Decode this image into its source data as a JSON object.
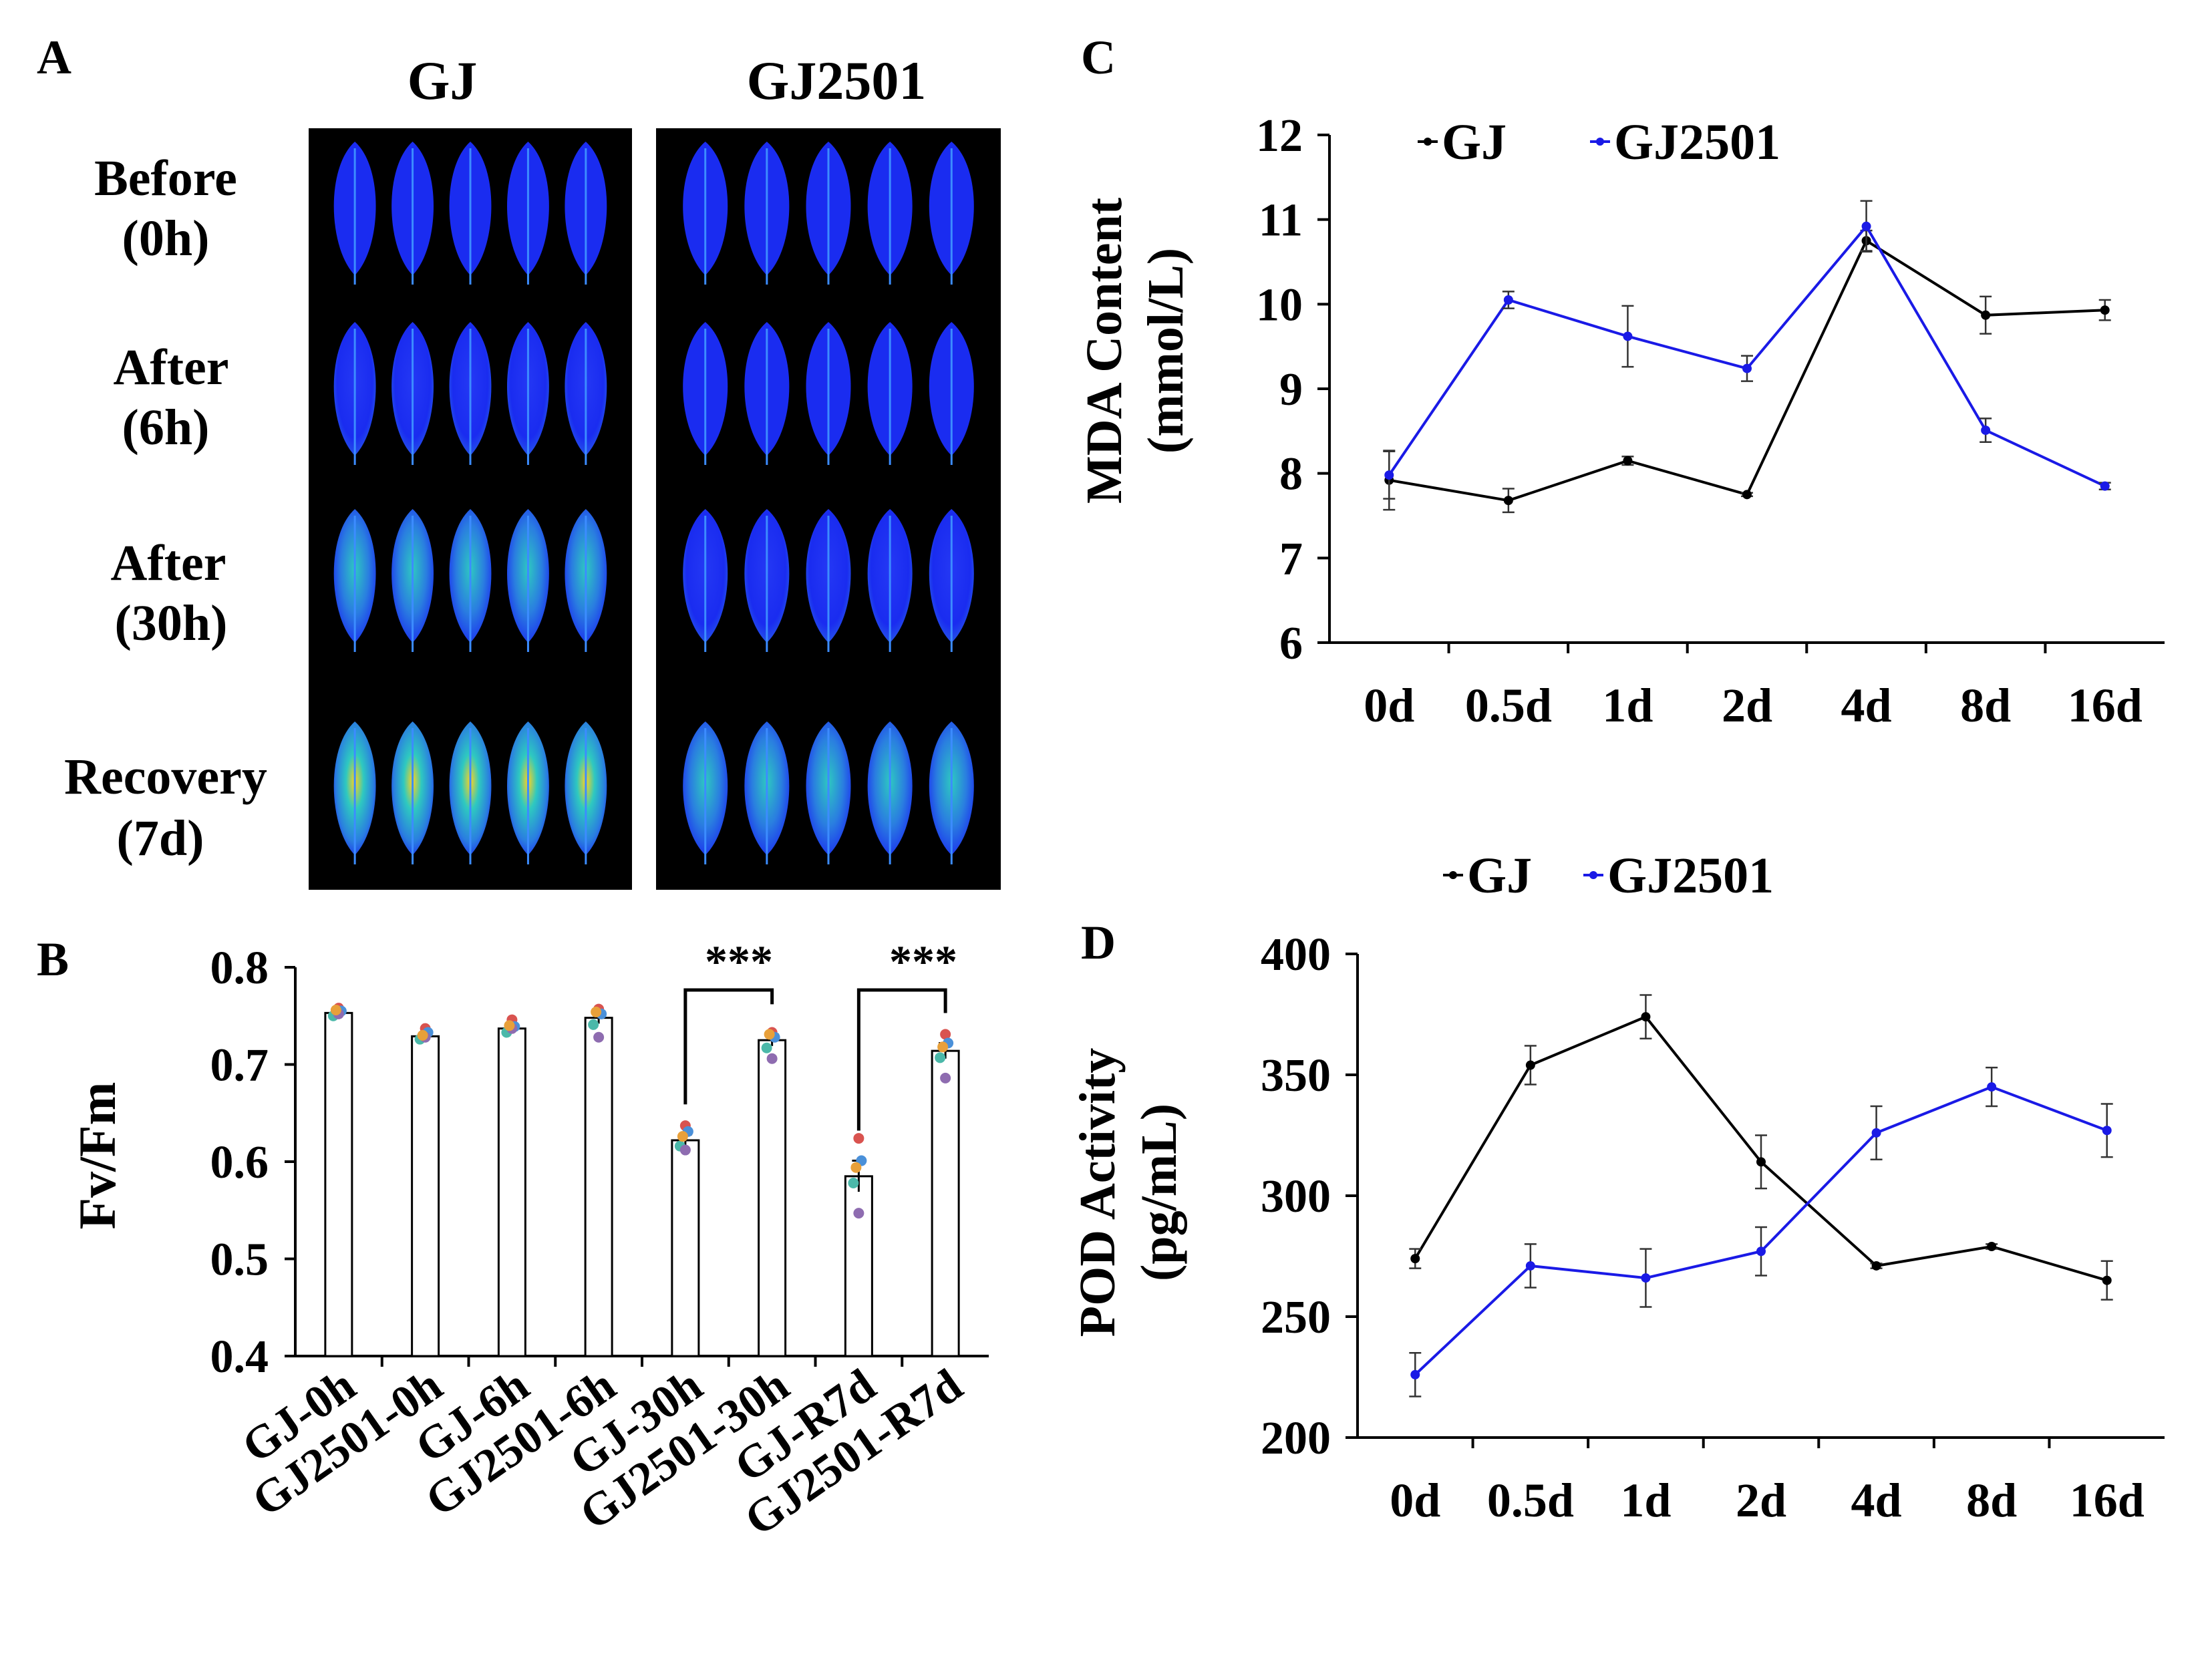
{
  "panels": {
    "A": {
      "letter": "A",
      "columns": [
        "GJ",
        "GJ2501"
      ],
      "rows": [
        {
          "line1": "Before",
          "line2": "(0h)"
        },
        {
          "line1": "After",
          "line2": "(6h)"
        },
        {
          "line1": "After",
          "line2": "(30h)"
        },
        {
          "line1": "Recovery",
          "line2": "(7d)"
        }
      ],
      "leaf_counts": [
        [
          5,
          5
        ],
        [
          5,
          5
        ],
        [
          5,
          5
        ],
        [
          5,
          5
        ]
      ],
      "colors": {
        "background": "#000000",
        "healthy": "#1a2cf0",
        "stressed": "#2ec9c0",
        "damage": "#ffd21e"
      }
    },
    "B": {
      "letter": "B",
      "significance": [
        "***",
        "***"
      ]
    },
    "C": {
      "letter": "C"
    },
    "D": {
      "letter": "D"
    }
  },
  "chart_data": [
    {
      "panel": "B",
      "type": "bar",
      "categories": [
        "GJ-0h",
        "GJ2501-0h",
        "GJ-6h",
        "GJ2501-6h",
        "GJ-30h",
        "GJ2501-30h",
        "GJ-R7d",
        "GJ2501-R7d"
      ],
      "values": [
        0.753,
        0.729,
        0.737,
        0.748,
        0.622,
        0.725,
        0.585,
        0.714
      ],
      "errors": [
        0.004,
        0.003,
        0.004,
        0.006,
        0.006,
        0.006,
        0.016,
        0.008
      ],
      "points": [
        [
          0.758,
          0.755,
          0.75,
          0.752,
          0.756
        ],
        [
          0.737,
          0.733,
          0.726,
          0.728,
          0.73
        ],
        [
          0.746,
          0.739,
          0.733,
          0.737,
          0.74
        ],
        [
          0.757,
          0.752,
          0.741,
          0.728,
          0.754
        ],
        [
          0.637,
          0.631,
          0.616,
          0.612,
          0.626
        ],
        [
          0.733,
          0.728,
          0.717,
          0.706,
          0.731
        ],
        [
          0.624,
          0.601,
          0.578,
          0.547,
          0.594
        ],
        [
          0.731,
          0.722,
          0.707,
          0.686,
          0.718
        ]
      ],
      "point_colors": [
        "#d9534f",
        "#4a90d9",
        "#4bb8a9",
        "#8e6cb0",
        "#e8a03a"
      ],
      "ylabel": "Fv/Fm",
      "ylim": [
        0.4,
        0.8
      ],
      "yticks": [
        "0.4",
        "0.5",
        "0.6",
        "0.7",
        "0.8"
      ],
      "grid": false
    },
    {
      "panel": "C",
      "type": "line",
      "categories": [
        "0d",
        "0.5d",
        "1d",
        "2d",
        "4d",
        "8d",
        "16d"
      ],
      "series": [
        {
          "name": "GJ",
          "color": "#000000",
          "values": [
            7.92,
            7.68,
            8.15,
            7.75,
            10.75,
            9.87,
            9.93
          ],
          "errors": [
            0.35,
            0.14,
            0.05,
            0.02,
            0.12,
            0.22,
            0.12
          ]
        },
        {
          "name": "GJ2501",
          "color": "#1a1ae6",
          "values": [
            7.98,
            10.05,
            9.62,
            9.24,
            10.92,
            8.51,
            7.85
          ],
          "errors": [
            0.28,
            0.1,
            0.36,
            0.15,
            0.3,
            0.14,
            0.04
          ]
        }
      ],
      "ylabel_line1": "MDA Content",
      "ylabel_line2": "(mmol/L)",
      "ylim": [
        6,
        12
      ],
      "yticks": [
        "6",
        "7",
        "8",
        "9",
        "10",
        "11",
        "12"
      ],
      "legend": "top-left",
      "grid": false
    },
    {
      "panel": "D",
      "type": "line",
      "categories": [
        "0d",
        "0.5d",
        "1d",
        "2d",
        "4d",
        "8d",
        "16d"
      ],
      "series": [
        {
          "name": "GJ",
          "color": "#000000",
          "values": [
            274,
            354,
            374,
            314,
            271,
            279,
            265
          ],
          "errors": [
            4,
            8,
            9,
            11,
            1,
            1,
            8
          ]
        },
        {
          "name": "GJ2501",
          "color": "#1a1ae6",
          "values": [
            226,
            271,
            266,
            277,
            326,
            345,
            327
          ],
          "errors": [
            9,
            9,
            12,
            10,
            11,
            8,
            11
          ]
        }
      ],
      "ylabel_line1": "POD Activity",
      "ylabel_line2": "(pg/mL)",
      "ylim": [
        200,
        400
      ],
      "yticks": [
        "200",
        "250",
        "300",
        "350",
        "400"
      ],
      "legend": "above-plot",
      "grid": false
    }
  ]
}
